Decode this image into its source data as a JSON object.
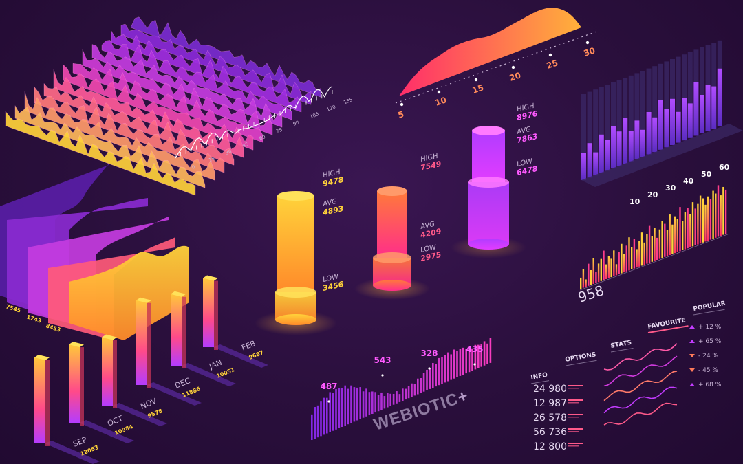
{
  "colors": {
    "background": "#2a0f3c",
    "yellow": "#ffd23a",
    "orange": "#ff7a3a",
    "pink": "#ff3d8a",
    "magenta": "#e23cff",
    "violet": "#9b3cff",
    "label": "#c9b5d6",
    "dim": "#7d6a8f"
  },
  "brand": {
    "logo_text": "WEBIOTIC"
  },
  "chart_data": [
    {
      "type": "area",
      "id": "ridge-surface",
      "x_ticks": [
        "0",
        "15",
        "30",
        "45",
        "60",
        "75",
        "90",
        "105",
        "120",
        "135"
      ]
    },
    {
      "type": "area",
      "id": "top-gradient-area",
      "axis_numbers": [
        "5",
        "10",
        "15",
        "20",
        "25",
        "30"
      ]
    },
    {
      "type": "bar",
      "id": "isometric-bars-right",
      "x_ticks": [
        "10",
        "20",
        "30",
        "40",
        "50",
        "60"
      ],
      "values": [
        7,
        9,
        6,
        10,
        8,
        11,
        9,
        12,
        8,
        10,
        7,
        11,
        9,
        13,
        10,
        12,
        8,
        11,
        9,
        14,
        10,
        12,
        11,
        15
      ]
    },
    {
      "type": "bar",
      "id": "cylinders",
      "series": [
        {
          "values": {
            "high": 9478,
            "avg": 4893,
            "low": 3456
          },
          "labels": {
            "high": "HIGH",
            "avg": "AVG",
            "low": "LOW"
          },
          "color": "#ffc23a"
        },
        {
          "values": {
            "high": 7549,
            "avg": 4209,
            "low": 2975
          },
          "labels": {
            "high": "HIGH",
            "avg": "AVG",
            "low": "LOW"
          },
          "color": "#ff5a5a"
        },
        {
          "values": {
            "high": 8976,
            "avg": 7863,
            "low": 6478
          },
          "labels": {
            "high": "HIGH",
            "avg": "AVG",
            "low": "LOW"
          },
          "color": "#c03cff"
        }
      ]
    },
    {
      "type": "area",
      "id": "stacked-areas-left",
      "labels": [
        "7545",
        "1743",
        "8453"
      ]
    },
    {
      "type": "bar",
      "id": "bar-strip-right",
      "big_value": "958",
      "values": [
        3,
        5,
        2,
        6,
        4,
        7,
        3,
        5,
        6,
        8,
        4,
        6,
        5,
        7,
        3,
        6,
        8,
        5,
        7,
        9,
        6,
        8,
        5,
        7,
        9,
        6,
        8,
        10,
        7,
        9,
        6,
        8,
        10,
        9,
        7,
        11,
        8,
        10,
        9,
        12,
        8,
        10,
        11,
        9,
        12,
        10,
        11,
        13,
        12,
        10,
        12,
        11,
        13,
        12,
        14,
        11,
        13,
        12
      ]
    },
    {
      "type": "bar",
      "id": "isometric-months",
      "categories": [
        "SEP",
        "OCT",
        "NOV",
        "DEC",
        "JAN",
        "FEB"
      ],
      "values": [
        12053,
        10984,
        9578,
        11886,
        10051,
        9687
      ],
      "value_labels": [
        "12053",
        "10984",
        "9578",
        "11886",
        "10051",
        "9687"
      ]
    },
    {
      "type": "bar",
      "id": "center-wave",
      "annotations": [
        {
          "value": "487"
        },
        {
          "value": "543"
        },
        {
          "value": "328"
        },
        {
          "value": "435"
        }
      ]
    },
    {
      "type": "table",
      "id": "info-panel",
      "tabs": [
        "INFO",
        "OPTIONS",
        "STATS",
        "FAVOURITE",
        "POPULAR"
      ],
      "active_tab": "FAVOURITE",
      "values": [
        "24 980",
        "12 987",
        "26 578",
        "56 736",
        "12 800"
      ],
      "percents": [
        "+ 12 %",
        "+ 65 %",
        "- 24 %",
        "- 45 %",
        "+ 68 %"
      ]
    }
  ]
}
